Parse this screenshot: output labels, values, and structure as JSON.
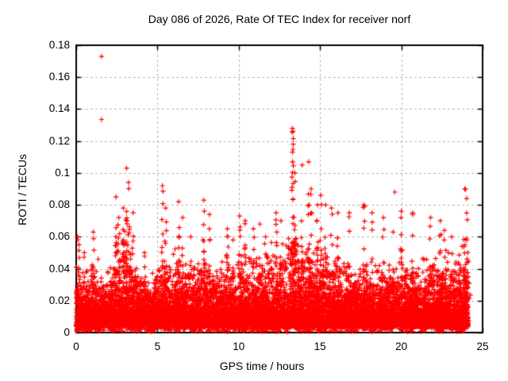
{
  "chart_data": {
    "type": "scatter",
    "title": "Day 086 of 2026, Rate Of TEC Index for receiver norf",
    "xlabel": "GPS time / hours",
    "ylabel": "ROTI / TECUs",
    "xlim": [
      0,
      25
    ],
    "ylim": [
      0,
      0.18
    ],
    "x_tick_labels": [
      "0",
      "5",
      "10",
      "15",
      "20",
      "25"
    ],
    "x_tick_values": [
      0,
      5,
      10,
      15,
      20,
      25
    ],
    "y_tick_labels": [
      "0",
      "0.02",
      "0.04",
      "0.06",
      "0.08",
      "0.1",
      "0.12",
      "0.14",
      "0.16",
      "0.18"
    ],
    "y_tick_values": [
      0,
      0.02,
      0.04,
      0.06,
      0.08,
      0.1,
      0.12,
      0.14,
      0.16,
      0.18
    ],
    "grid": true,
    "legend": false,
    "marker": "plus",
    "marker_color": "#ff0000",
    "grid_color": "#b4b4b4",
    "axis_color": "#000000",
    "background_color": "#ffffff",
    "time_span": [
      0,
      24.12
    ],
    "density_model": {
      "seed": 12345,
      "floor": 0.0035,
      "core_scale": 0.0075,
      "core_count": 7200,
      "mid_count": 3200,
      "fringe_count": 420,
      "envelope_t": [
        0,
        0.5,
        1,
        1.5,
        2,
        2.5,
        3,
        3.5,
        4,
        4.5,
        5,
        5.5,
        6,
        6.5,
        7,
        7.5,
        8,
        8.5,
        9,
        9.5,
        10,
        10.5,
        11,
        11.5,
        12,
        12.5,
        13,
        13.5,
        14,
        14.5,
        15,
        15.5,
        16,
        16.5,
        17,
        17.5,
        18,
        18.5,
        19,
        19.5,
        20,
        20.5,
        21,
        21.5,
        22,
        22.5,
        23,
        23.5,
        24
      ],
      "envelope_top": [
        0.04,
        0.032,
        0.045,
        0.03,
        0.034,
        0.052,
        0.056,
        0.046,
        0.032,
        0.026,
        0.04,
        0.036,
        0.046,
        0.04,
        0.034,
        0.044,
        0.042,
        0.034,
        0.042,
        0.04,
        0.048,
        0.042,
        0.046,
        0.04,
        0.05,
        0.046,
        0.055,
        0.052,
        0.046,
        0.04,
        0.05,
        0.046,
        0.042,
        0.04,
        0.036,
        0.042,
        0.04,
        0.036,
        0.04,
        0.036,
        0.04,
        0.046,
        0.036,
        0.042,
        0.046,
        0.04,
        0.048,
        0.05,
        0.048
      ]
    },
    "spikes": [
      [
        0.08,
        0.06,
        7
      ],
      [
        0.18,
        0.055,
        5
      ],
      [
        0.5,
        0.05,
        5
      ],
      [
        1.05,
        0.063,
        8
      ],
      [
        1.35,
        0.046,
        5
      ],
      [
        2.45,
        0.085,
        10
      ],
      [
        2.62,
        0.072,
        7
      ],
      [
        2.9,
        0.078,
        8
      ],
      [
        3.1,
        0.103,
        12
      ],
      [
        3.22,
        0.094,
        8
      ],
      [
        3.5,
        0.075,
        7
      ],
      [
        4.2,
        0.05,
        5
      ],
      [
        5.3,
        0.092,
        10
      ],
      [
        5.5,
        0.078,
        7
      ],
      [
        6.3,
        0.082,
        9
      ],
      [
        6.55,
        0.072,
        6
      ],
      [
        7.05,
        0.06,
        5
      ],
      [
        7.85,
        0.083,
        9
      ],
      [
        8.2,
        0.074,
        7
      ],
      [
        9.3,
        0.065,
        8
      ],
      [
        9.65,
        0.058,
        5
      ],
      [
        10.05,
        0.073,
        8
      ],
      [
        10.4,
        0.07,
        7
      ],
      [
        10.9,
        0.065,
        6
      ],
      [
        11.3,
        0.068,
        8
      ],
      [
        11.65,
        0.06,
        5
      ],
      [
        12.3,
        0.075,
        9
      ],
      [
        12.6,
        0.07,
        7
      ],
      [
        13.3,
        0.128,
        15
      ],
      [
        13.35,
        0.118,
        10
      ],
      [
        13.45,
        0.1,
        8
      ],
      [
        13.9,
        0.105,
        7
      ],
      [
        14.3,
        0.107,
        9
      ],
      [
        14.45,
        0.09,
        6
      ],
      [
        14.85,
        0.08,
        8
      ],
      [
        15.05,
        0.086,
        10
      ],
      [
        15.35,
        0.08,
        7
      ],
      [
        15.7,
        0.078,
        6
      ],
      [
        16.1,
        0.075,
        7
      ],
      [
        16.8,
        0.075,
        8
      ],
      [
        17.7,
        0.08,
        8
      ],
      [
        18.2,
        0.075,
        7
      ],
      [
        18.9,
        0.072,
        7
      ],
      [
        19.5,
        0.063,
        5
      ],
      [
        20.0,
        0.076,
        7
      ],
      [
        20.7,
        0.075,
        8
      ],
      [
        21.8,
        0.072,
        8
      ],
      [
        22.4,
        0.07,
        7
      ],
      [
        22.65,
        0.064,
        5
      ],
      [
        23.1,
        0.06,
        5
      ],
      [
        23.9,
        0.09,
        9
      ],
      [
        24.02,
        0.084,
        6
      ]
    ],
    "outliers": [
      [
        1.56,
        0.173
      ],
      [
        1.56,
        0.1335
      ],
      [
        19.6,
        0.088
      ]
    ]
  }
}
